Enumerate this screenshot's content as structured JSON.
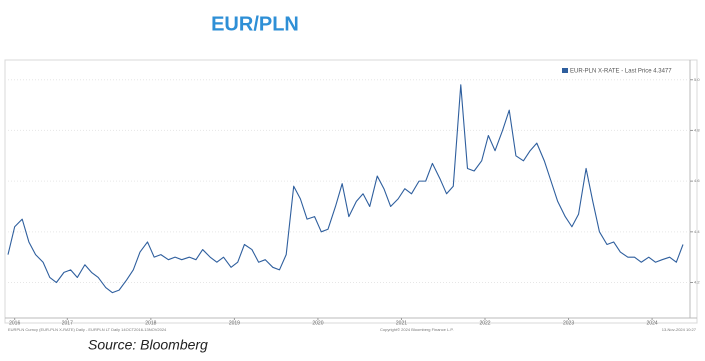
{
  "chart_data": {
    "type": "line",
    "title": "EUR/PLN",
    "source": "Source: Bloomberg",
    "legend": "EUR-PLN X-RATE - Last Price 4.3477",
    "footer_left": "EURPLN Curncy (EUR-PLN X-RATE) Daily - EURPLN LT Daily 14OCT2016-13NOV2024",
    "footer_center": "Copyright© 2024 Bloomberg Finance L.P.",
    "footer_right": "13-Nov-2024 10:27",
    "xlim": [
      2016.79,
      2024.87
    ],
    "xticks": [
      {
        "value": 2016.87,
        "label": "2016"
      },
      {
        "value": 2017.5,
        "label": "2017"
      },
      {
        "value": 2018.5,
        "label": "2018"
      },
      {
        "value": 2019.5,
        "label": "2019"
      },
      {
        "value": 2020.5,
        "label": "2020"
      },
      {
        "value": 2021.5,
        "label": "2021"
      },
      {
        "value": 2022.5,
        "label": "2022"
      },
      {
        "value": 2023.5,
        "label": "2023"
      },
      {
        "value": 2024.5,
        "label": "2024"
      }
    ],
    "ylim": [
      4.06,
      5.07
    ],
    "yticks": [
      4.2,
      4.4,
      4.6,
      4.8,
      {
        "value": 5,
        "label": "5.0"
      }
    ],
    "grid": true,
    "series": [
      {
        "name": "EUR-PLN X-RATE",
        "color": "#2f5f9e",
        "x": [
          2016.79,
          2016.87,
          2016.96,
          2017.04,
          2017.12,
          2017.21,
          2017.29,
          2017.37,
          2017.46,
          2017.54,
          2017.62,
          2017.71,
          2017.79,
          2017.87,
          2017.96,
          2018.04,
          2018.12,
          2018.21,
          2018.29,
          2018.37,
          2018.46,
          2018.54,
          2018.62,
          2018.71,
          2018.79,
          2018.87,
          2018.96,
          2019.04,
          2019.12,
          2019.21,
          2019.29,
          2019.37,
          2019.46,
          2019.54,
          2019.62,
          2019.71,
          2019.79,
          2019.87,
          2019.96,
          2020.04,
          2020.12,
          2020.21,
          2020.29,
          2020.37,
          2020.46,
          2020.54,
          2020.62,
          2020.71,
          2020.79,
          2020.87,
          2020.96,
          2021.04,
          2021.12,
          2021.21,
          2021.29,
          2021.37,
          2021.46,
          2021.54,
          2021.62,
          2021.71,
          2021.79,
          2021.87,
          2021.96,
          2022.04,
          2022.12,
          2022.21,
          2022.29,
          2022.37,
          2022.46,
          2022.54,
          2022.62,
          2022.71,
          2022.79,
          2022.87,
          2022.96,
          2023.04,
          2023.12,
          2023.21,
          2023.29,
          2023.37,
          2023.46,
          2023.54,
          2023.62,
          2023.71,
          2023.79,
          2023.87,
          2023.96,
          2024.04,
          2024.12,
          2024.21,
          2024.29,
          2024.37,
          2024.46,
          2024.54,
          2024.62,
          2024.71,
          2024.79,
          2024.87
        ],
        "values": [
          4.31,
          4.42,
          4.45,
          4.36,
          4.31,
          4.28,
          4.22,
          4.2,
          4.24,
          4.25,
          4.22,
          4.27,
          4.24,
          4.22,
          4.18,
          4.16,
          4.17,
          4.21,
          4.25,
          4.32,
          4.36,
          4.3,
          4.31,
          4.29,
          4.3,
          4.29,
          4.3,
          4.29,
          4.33,
          4.3,
          4.28,
          4.3,
          4.26,
          4.28,
          4.35,
          4.33,
          4.28,
          4.29,
          4.26,
          4.25,
          4.31,
          4.58,
          4.53,
          4.45,
          4.46,
          4.4,
          4.41,
          4.5,
          4.59,
          4.46,
          4.52,
          4.55,
          4.5,
          4.62,
          4.57,
          4.5,
          4.53,
          4.57,
          4.55,
          4.6,
          4.6,
          4.67,
          4.61,
          4.55,
          4.58,
          4.98,
          4.65,
          4.64,
          4.68,
          4.78,
          4.72,
          4.8,
          4.88,
          4.7,
          4.68,
          4.72,
          4.75,
          4.68,
          4.6,
          4.52,
          4.46,
          4.42,
          4.47,
          4.65,
          4.52,
          4.4,
          4.35,
          4.36,
          4.32,
          4.3,
          4.3,
          4.28,
          4.3,
          4.28,
          4.29,
          4.3,
          4.28,
          4.35
        ]
      }
    ]
  }
}
